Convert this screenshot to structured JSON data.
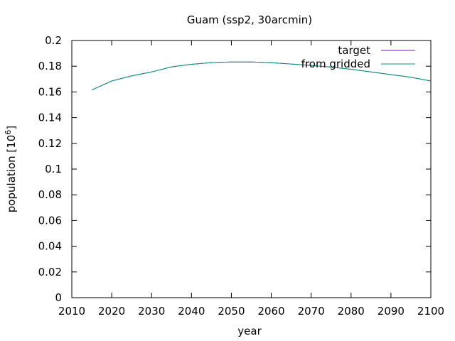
{
  "chart_data": {
    "type": "line",
    "title": "Guam (ssp2, 30arcmin)",
    "xlabel": "year",
    "ylabel_base": "population [10",
    "ylabel_exp": "6",
    "ylabel_close": "]",
    "xlim": [
      2010,
      2100
    ],
    "ylim": [
      0,
      0.2
    ],
    "xticks": [
      2010,
      2020,
      2030,
      2040,
      2050,
      2060,
      2070,
      2080,
      2090,
      2100
    ],
    "yticks": [
      0,
      0.02,
      0.04,
      0.06,
      0.08,
      0.1,
      0.12,
      0.14,
      0.16,
      0.18,
      0.2
    ],
    "ytick_labels": [
      "0",
      "0.02",
      "0.04",
      "0.06",
      "0.08",
      "0.1",
      "0.12",
      "0.14",
      "0.16",
      "0.18",
      "0.2"
    ],
    "grid": false,
    "legend_position": "top-right",
    "series": [
      {
        "name": "target",
        "color": "#9400d3",
        "x": [
          2015,
          2020,
          2025,
          2030,
          2035,
          2040,
          2045,
          2050,
          2055,
          2060,
          2065,
          2070,
          2075,
          2080,
          2085,
          2090,
          2095,
          2100
        ],
        "y": [
          0.1615,
          0.1685,
          0.1725,
          0.1755,
          0.1795,
          0.1815,
          0.1828,
          0.1833,
          0.1833,
          0.1827,
          0.1817,
          0.1806,
          0.1793,
          0.1776,
          0.1755,
          0.1735,
          0.1714,
          0.1685
        ]
      },
      {
        "name": "from gridded",
        "color": "#009e73",
        "x": [
          2015,
          2020,
          2025,
          2030,
          2035,
          2040,
          2045,
          2050,
          2055,
          2060,
          2065,
          2070,
          2075,
          2080,
          2085,
          2090,
          2095,
          2100
        ],
        "y": [
          0.1615,
          0.1685,
          0.1725,
          0.1755,
          0.1795,
          0.1815,
          0.1828,
          0.1833,
          0.1833,
          0.1827,
          0.1817,
          0.1806,
          0.1793,
          0.1776,
          0.1755,
          0.1735,
          0.1714,
          0.1685
        ]
      }
    ]
  }
}
